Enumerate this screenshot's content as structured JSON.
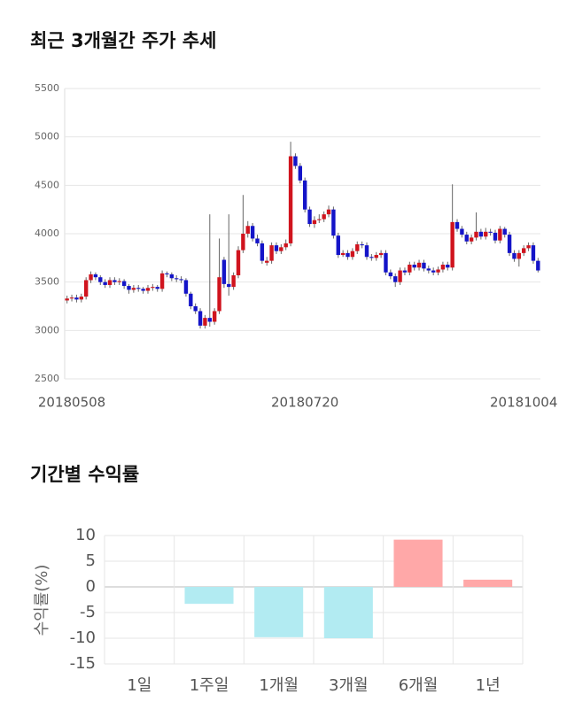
{
  "chart_data": [
    {
      "type": "candlestick",
      "title": "최근 3개월간 주가 추세",
      "categories": [
        null,
        "20180508",
        null,
        null,
        null,
        null,
        null,
        null,
        null,
        null,
        null,
        null,
        null,
        null,
        null,
        null,
        null,
        null,
        null,
        null,
        null,
        null,
        null,
        null,
        null,
        null,
        null,
        null,
        null,
        null,
        null,
        null,
        null,
        null,
        null,
        null,
        null,
        null,
        null,
        null,
        null,
        null,
        null,
        null,
        null,
        null,
        null,
        null,
        null,
        null,
        "20180720",
        null,
        null,
        null,
        null,
        null,
        null,
        null,
        null,
        null,
        null,
        null,
        null,
        null,
        null,
        null,
        null,
        null,
        null,
        null,
        null,
        null,
        null,
        null,
        null,
        null,
        null,
        null,
        null,
        null,
        null,
        null,
        null,
        null,
        null,
        null,
        null,
        null,
        null,
        null,
        null,
        null,
        null,
        null,
        null,
        null,
        "20181004",
        null,
        null,
        null
      ],
      "open": [
        3310,
        3330,
        3340,
        3320,
        3350,
        3520,
        3580,
        3550,
        3500,
        3470,
        3520,
        3500,
        3510,
        3460,
        3420,
        3440,
        3430,
        3410,
        3440,
        3450,
        3430,
        3590,
        3580,
        3540,
        3530,
        3520,
        3380,
        3250,
        3200,
        3050,
        3130,
        3090,
        3200,
        3730,
        3480,
        3450,
        3570,
        3830,
        4000,
        4080,
        3950,
        3900,
        3700,
        3720,
        3880,
        3820,
        3860,
        3900,
        4800,
        4700,
        4550,
        4250,
        4100,
        4140,
        4150,
        4200,
        4250,
        3980,
        3780,
        3800,
        3760,
        3820,
        3890,
        3880,
        3760,
        3750,
        3780,
        3800,
        3600,
        3560,
        3500,
        3620,
        3600,
        3680,
        3650,
        3700,
        3640,
        3620,
        3600,
        3630,
        3680,
        3650,
        4120,
        4050,
        3990,
        3920,
        3960,
        4020,
        3970,
        4020,
        4010,
        3930,
        4050,
        3990,
        3800,
        3740,
        3800,
        3850,
        3880,
        3720
      ],
      "high": [
        3360,
        3370,
        3370,
        3380,
        3550,
        3610,
        3600,
        3570,
        3530,
        3550,
        3550,
        3540,
        3530,
        3480,
        3470,
        3470,
        3450,
        3470,
        3480,
        3470,
        3620,
        3610,
        3600,
        3570,
        3560,
        3540,
        3400,
        3280,
        3230,
        3160,
        4200,
        3230,
        3950,
        3760,
        4200,
        3600,
        3870,
        4400,
        4130,
        4110,
        3990,
        3930,
        3760,
        3910,
        3910,
        3890,
        3940,
        4950,
        4830,
        4730,
        4580,
        4280,
        4180,
        4200,
        4230,
        4290,
        4280,
        4010,
        3830,
        3830,
        3850,
        3920,
        3920,
        3910,
        3790,
        3810,
        3830,
        3830,
        3630,
        3590,
        3650,
        3650,
        3710,
        3710,
        3730,
        3730,
        3670,
        3650,
        3660,
        3710,
        3710,
        4510,
        4150,
        4080,
        4020,
        3990,
        4220,
        4050,
        4060,
        4050,
        4040,
        4080,
        4070,
        4020,
        3830,
        3830,
        3880,
        3910,
        3910,
        3750
      ],
      "low": [
        3280,
        3300,
        3290,
        3290,
        3320,
        3490,
        3520,
        3470,
        3440,
        3440,
        3470,
        3470,
        3430,
        3380,
        3390,
        3400,
        3380,
        3380,
        3410,
        3400,
        3400,
        3550,
        3510,
        3500,
        3490,
        3350,
        3220,
        3170,
        3020,
        3020,
        3040,
        3060,
        3170,
        3440,
        3360,
        3420,
        3540,
        3800,
        3960,
        3920,
        3870,
        3690,
        3670,
        3690,
        3790,
        3790,
        3830,
        3870,
        4670,
        4520,
        4220,
        4070,
        4060,
        4110,
        4120,
        4170,
        3950,
        3750,
        3760,
        3730,
        3730,
        3790,
        3850,
        3730,
        3720,
        3720,
        3750,
        3570,
        3530,
        3450,
        3470,
        3570,
        3570,
        3620,
        3620,
        3610,
        3590,
        3570,
        3570,
        3600,
        3620,
        3620,
        4020,
        3960,
        3890,
        3890,
        3930,
        3940,
        3940,
        3980,
        3900,
        3900,
        3960,
        3770,
        3710,
        3660,
        3770,
        3820,
        3690,
        3600
      ],
      "close": [
        3330,
        3340,
        3320,
        3350,
        3520,
        3580,
        3550,
        3500,
        3470,
        3520,
        3500,
        3510,
        3460,
        3420,
        3440,
        3430,
        3410,
        3440,
        3450,
        3430,
        3590,
        3580,
        3540,
        3530,
        3520,
        3380,
        3250,
        3200,
        3050,
        3130,
        3090,
        3200,
        3550,
        3480,
        3450,
        3570,
        3830,
        4000,
        4080,
        3950,
        3900,
        3720,
        3720,
        3880,
        3820,
        3860,
        3900,
        4800,
        4700,
        4550,
        4250,
        4100,
        4140,
        4150,
        4200,
        4250,
        3980,
        3780,
        3800,
        3760,
        3820,
        3890,
        3880,
        3760,
        3750,
        3780,
        3800,
        3600,
        3560,
        3500,
        3620,
        3600,
        3680,
        3650,
        3700,
        3640,
        3620,
        3600,
        3630,
        3680,
        3650,
        4120,
        4050,
        3990,
        3920,
        3960,
        4020,
        3970,
        4020,
        4010,
        3930,
        4050,
        3990,
        3800,
        3740,
        3800,
        3850,
        3880,
        3720,
        3620
      ],
      "up_color": "#d0141e",
      "down_color": "#1414c8",
      "ylim": [
        2500,
        5500
      ],
      "yticks": [
        2500,
        3000,
        3500,
        4000,
        4500,
        5000,
        5500
      ],
      "grid": true
    },
    {
      "type": "bar",
      "title": "기간별 수익률",
      "y_label": "수익률(%)",
      "categories": [
        "1일",
        "1주일",
        "1개월",
        "3개월",
        "6개월",
        "1년"
      ],
      "values": [
        0,
        -3.3,
        -9.8,
        -10.0,
        9.2,
        1.4
      ],
      "colors": [
        "#b2ebf2",
        "#b2ebf2",
        "#b2ebf2",
        "#b2ebf2",
        "#ffa8a8",
        "#ffa8a8"
      ],
      "ylim": [
        -15,
        10
      ],
      "yticks": [
        -15,
        -10,
        -5,
        0,
        5,
        10
      ],
      "grid": true
    }
  ]
}
